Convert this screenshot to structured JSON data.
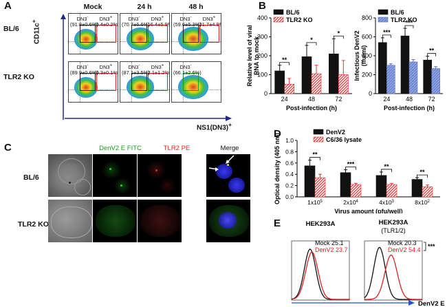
{
  "panel_labels": {
    "a": "A",
    "b": "B",
    "c": "C",
    "d": "D",
    "e": "E"
  },
  "panelA": {
    "rows": [
      "BL/6",
      "TLR2 KO"
    ],
    "cols": [
      "Mock",
      "24 h",
      "48 h"
    ],
    "y_axis_label": "CD11c",
    "y_axis_sup": "+",
    "x_axis_label": "NS1(DN3)",
    "x_axis_sup": "+",
    "dn_neg": "DN3",
    "dn_pos": "DN3",
    "sup_minus": "-",
    "sup_plus": "+",
    "cells": [
      {
        "left": "(91.8±0.6%)",
        "right": "(0.4±0.2%)"
      },
      {
        "left": "(70.7±6.6%)",
        "right": "(16.4±5.9%)"
      },
      {
        "left": "(59.6±5.3%)",
        "right": "(21.7±4.9%)"
      },
      {
        "left": "(89.9±0.6%)",
        "right": "(0.3±0.1%)"
      },
      {
        "left": "(87.1±3.5%)",
        "right": "(2.1±1.2%)"
      },
      {
        "left": "(66.1±2.6%)",
        "right": ""
      }
    ]
  },
  "panelC": {
    "rows": [
      "BL/6",
      "TLR2 KO"
    ],
    "cols": [
      "",
      "DenV2 E FITC",
      "TLR2 PE",
      "Merge"
    ],
    "col_colors": [
      "#000000",
      "#1a9a1a",
      "#e02020",
      "#000000"
    ]
  },
  "colors": {
    "black_bar": "#111111",
    "blue_bar": "#8da2e0",
    "red_hatch": "#e03030",
    "arrow_blue": "#2255cc",
    "red": "#e02020",
    "green": "#1a9a1a"
  },
  "chart_data": [
    {
      "type": "bar",
      "title": "",
      "ylabel": "Relative level of viral RNA to mock",
      "xlabel": "Post-infection (h)",
      "ylim": [
        0,
        400
      ],
      "yticks": [
        "0",
        "100",
        "200",
        "300",
        "400"
      ],
      "categories": [
        "24",
        "48",
        "72"
      ],
      "series": [
        {
          "name": "BL/6",
          "values": [
            120,
            195,
            210
          ],
          "errors": [
            30,
            60,
            80
          ]
        },
        {
          "name": "TLR2 KO",
          "values": [
            50,
            105,
            100
          ],
          "errors": [
            30,
            45,
            75
          ]
        }
      ],
      "significance": [
        "**",
        "*",
        "*"
      ],
      "legend": "top-left"
    },
    {
      "type": "bar",
      "title": "",
      "ylabel": "Infectious DenV2 (ffu/ml)",
      "xlabel": "Post-infection (h)",
      "ylim": [
        0,
        800
      ],
      "yticks": [
        "0",
        "200",
        "400",
        "600",
        "800"
      ],
      "categories": [
        "24",
        "48",
        "72"
      ],
      "series": [
        {
          "name": "BL/6",
          "values": [
            540,
            610,
            355
          ],
          "errors": [
            50,
            80,
            40
          ]
        },
        {
          "name": "TLR2 KO",
          "values": [
            300,
            335,
            265
          ],
          "errors": [
            15,
            25,
            20
          ]
        }
      ],
      "significance": [
        "***",
        "***",
        "**"
      ],
      "legend": "top-left"
    },
    {
      "type": "bar",
      "title": "",
      "ylabel": "Optical density (405 nm)",
      "xlabel": "Virus amount (pfu/well)",
      "ylim": [
        0,
        1.0
      ],
      "yticks": [
        "0.0",
        "0.2",
        "0.4",
        "0.6",
        "0.8",
        "1.0"
      ],
      "categories": [
        "1x10",
        "2x10",
        "4x10",
        "8x10"
      ],
      "category_sup": [
        "5",
        "4",
        "3",
        "2"
      ],
      "series": [
        {
          "name": "DenV2",
          "values": [
            0.55,
            0.43,
            0.38,
            0.31
          ],
          "errors": [
            0.1,
            0.05,
            0.06,
            0.03
          ]
        },
        {
          "name": "C6/36 lysate",
          "values": [
            0.34,
            0.22,
            0.22,
            0.18
          ],
          "errors": [
            0.06,
            0.02,
            0.02,
            0.03
          ]
        }
      ],
      "significance": [
        "**",
        "***",
        "**",
        "**"
      ],
      "legend": "top-right"
    },
    {
      "type": "line",
      "title": "",
      "xlabel": "DenV2 E",
      "ylabel": "",
      "panels": [
        {
          "title": "HEK293A",
          "subtitle": "",
          "mock_label": "Mock",
          "mock_value": "25.1",
          "denv_label": "DenV2",
          "denv_value": "23.7"
        },
        {
          "title": "HEK293A",
          "subtitle": "(TLR1/2)",
          "mock_label": "Mock",
          "mock_value": "20.3",
          "denv_label": "DenV2",
          "denv_value": "54.4",
          "sig": "***"
        }
      ]
    }
  ]
}
